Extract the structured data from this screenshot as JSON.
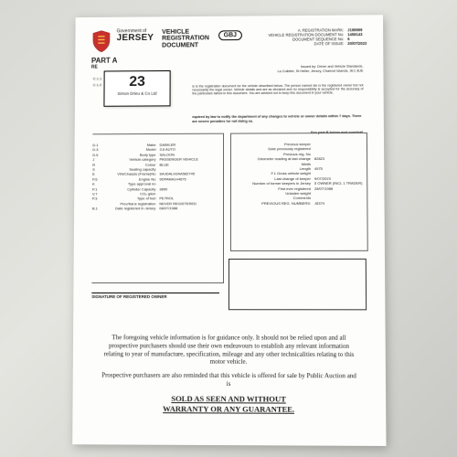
{
  "header": {
    "gov_line1": "Government of",
    "gov_line2": "JERSEY",
    "title_l1": "VEHICLE",
    "title_l2": "REGISTRATION",
    "title_l3": "DOCUMENT",
    "gbj": "GBJ"
  },
  "topright": {
    "reg_mark_lbl": "A: REGISTRATION MARK:",
    "reg_mark": "J199999",
    "doc_no_lbl": "VEHICLE REGISTRATION DOCUMENT No:",
    "doc_no": "1459143",
    "seq_lbl": "DOCUMENT SEQUENCE No:",
    "seq": "6",
    "issue_lbl": "DATE OF ISSUE:",
    "issue": "20/07/2023"
  },
  "part": {
    "label": "PART A",
    "sub": "RE"
  },
  "c_lbls": {
    "c11": "C.1.1",
    "c12": "C.1.2"
  },
  "lot": {
    "number": "23",
    "firm": "Simon Drieu & Co Ltd"
  },
  "issuer": {
    "l1": "Issued by: Driver and Vehicle Standards,",
    "l2": "La Collette, St Helier, Jersey, Channel Islands, JE1 3UE"
  },
  "notice": "is is the registration document for the vehicle described below. The person named ide is the registered owner but not necessarily the legal owner. Vehicle details and are as declared and no responsibility is accepted for the accuracy of the particulars tained in this document. You are advised not to keep this document in your vehicle.",
  "warn": "equired by law to notify the department of any changes to vehicle or owner details within 7 days. There are severe penalties for not doing so.",
  "seeB": "See part B below and overleaf.",
  "spec": [
    {
      "c": "D.1",
      "l": "Make",
      "v": "DAIMLER"
    },
    {
      "c": "D.3",
      "l": "Model",
      "v": "3.6 AUTO"
    },
    {
      "c": "D.5",
      "l": "Body type",
      "v": "SALOON"
    },
    {
      "c": "J",
      "l": "Vehicle category",
      "v": "PASSENGER VEHICLE"
    },
    {
      "c": "R",
      "l": "Colour",
      "v": "BLUE"
    },
    {
      "c": "S",
      "l": "Seating capacity",
      "v": ""
    },
    {
      "c": "E",
      "l": "VIN/Chassis (Frame)No",
      "v": "SAJDALH3AA582745"
    },
    {
      "c": "P.5",
      "l": "Engine No",
      "v": "9DPAMA144675"
    },
    {
      "c": "K",
      "l": "Type approval no",
      "v": ""
    },
    {
      "c": "P.1",
      "l": "Cylinder Capacity",
      "v": "3890"
    },
    {
      "c": "V.7",
      "l": "CO₂ g/km",
      "v": ""
    },
    {
      "c": "P.3",
      "l": "Type of fuel",
      "v": "PETROL"
    },
    {
      "c": "",
      "l": "Prev/trans registration",
      "v": "NEVER REGISTERED"
    },
    {
      "c": "B.1",
      "l": "Date registered in Jersey",
      "v": "08/07/1988"
    }
  ],
  "history": [
    {
      "l": "Previous keeper",
      "v": ""
    },
    {
      "l": "Date previously registered",
      "v": ""
    },
    {
      "l": "Previous reg. No",
      "v": ""
    },
    {
      "l": "Odometer reading at last change",
      "v": "82823"
    },
    {
      "l": "Width",
      "v": ""
    },
    {
      "l": "Length",
      "v": "4975"
    },
    {
      "l": "F.1 Gross vehicle weight",
      "v": ""
    },
    {
      "l": "Last change of keeper",
      "v": "9/07/2023"
    },
    {
      "l": "Number of former keepers in Jersey",
      "v": "5 OWNER (INCL 1 TRADER)"
    },
    {
      "l": "First ever registered",
      "v": "28/07/1988"
    },
    {
      "l": "Unladen weight",
      "v": ""
    },
    {
      "l": "Comments",
      "v": ""
    },
    {
      "l": "PREVIOUS REG. NUMBERS:",
      "v": "J6374"
    }
  ],
  "sig": "SIGNATURE OF REGISTERED OWNER",
  "disclaimer": {
    "p1": "The foregoing vehicle information is for guidance only. It should not be relied upon and all prospective purchasers should use their own endeavours to establish any relevant information relating to year of manufacture, specification, mileage and any other technicalities relating to this motor vehicle.",
    "p2": "Prospective purchasers are also reminded that this vehicle is offered for sale by Public Auction and is",
    "sold1": "SOLD AS SEEN AND WITHOUT",
    "sold2": "WARRANTY OR ANY GUARANTEE."
  }
}
